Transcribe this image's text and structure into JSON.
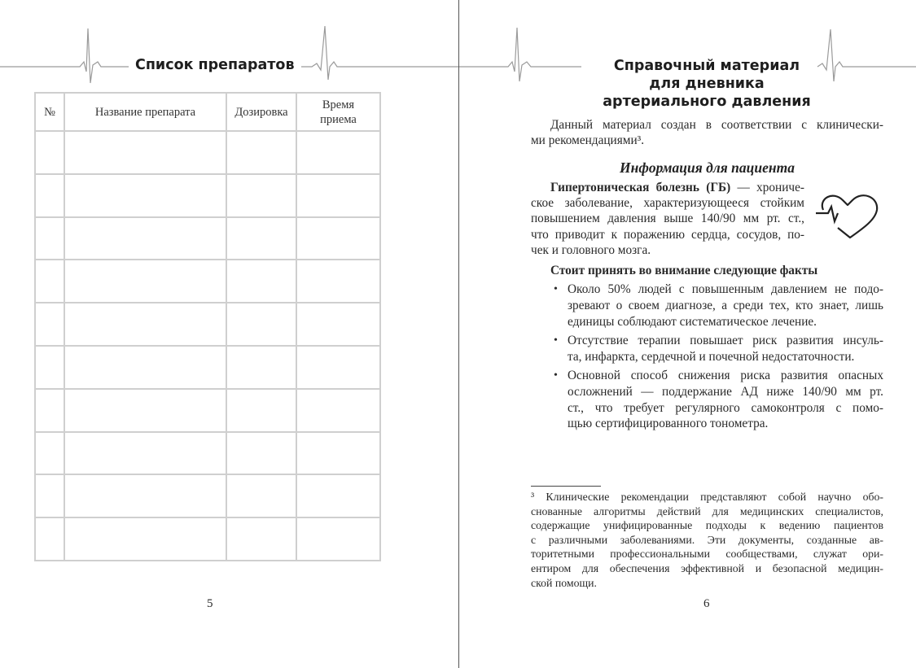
{
  "left_page": {
    "title": "Список препаратов",
    "table": {
      "headers": [
        "№",
        "Название препарата",
        "Дозировка",
        "Время приема"
      ],
      "rows": [
        [
          "",
          "",
          "",
          ""
        ],
        [
          "",
          "",
          "",
          ""
        ],
        [
          "",
          "",
          "",
          ""
        ],
        [
          "",
          "",
          "",
          ""
        ],
        [
          "",
          "",
          "",
          ""
        ],
        [
          "",
          "",
          "",
          ""
        ],
        [
          "",
          "",
          "",
          ""
        ],
        [
          "",
          "",
          "",
          ""
        ],
        [
          "",
          "",
          "",
          ""
        ],
        [
          "",
          "",
          "",
          ""
        ]
      ]
    },
    "page_number": "5"
  },
  "right_page": {
    "title_lines": [
      "Справочный материал",
      "для дневника",
      "артериального давления"
    ],
    "intro_lines": [
      "Данный материал создан в соответствии с клинически-",
      "ми рекомендациями³."
    ],
    "section_heading": "Информация для пациента",
    "gb_bold": "Гипертоническая болезнь (ГБ)",
    "gb_lines": [
      " — хрониче-",
      "ское заболевание, характеризующееся стойким",
      "повышением давления выше 140/90 мм рт. ст.,",
      "что приводит к поражению сердца, сосудов, по-",
      "чек и головного мозга."
    ],
    "facts_heading": "Стоит принять во внимание следующие факты",
    "bullets": [
      [
        "Около 50% людей с повышенным давлением не подо-",
        "зревают о своем диагнозе, а среди тех, кто знает, лишь",
        "единицы соблюдают систематическое лечение."
      ],
      [
        "Отсутствие терапии повышает риск развития инсуль-",
        "та, инфаркта, сердечной и почечной недостаточности."
      ],
      [
        "Основной способ снижения риска развития опасных",
        "осложнений — поддержание АД ниже 140/90 мм рт.",
        "ст., что требует регулярного самоконтроля с помо-",
        "щью сертифицированного тонометра."
      ]
    ],
    "footnote_lines": [
      "³ Клинические рекомендации представляют собой научно обо-",
      "снованные алгоритмы действий для медицинских специалистов,",
      "содержащие унифицированные подходы к ведению пациентов",
      "с различными заболеваниями. Эти документы, созданные ав-",
      "торитетными профессиональными сообществами, служат ори-",
      "ентиром для обеспечения эффективной и безопасной медицин-",
      "ской помощи."
    ],
    "page_number": "6",
    "icon": "heart-pulse-icon"
  }
}
